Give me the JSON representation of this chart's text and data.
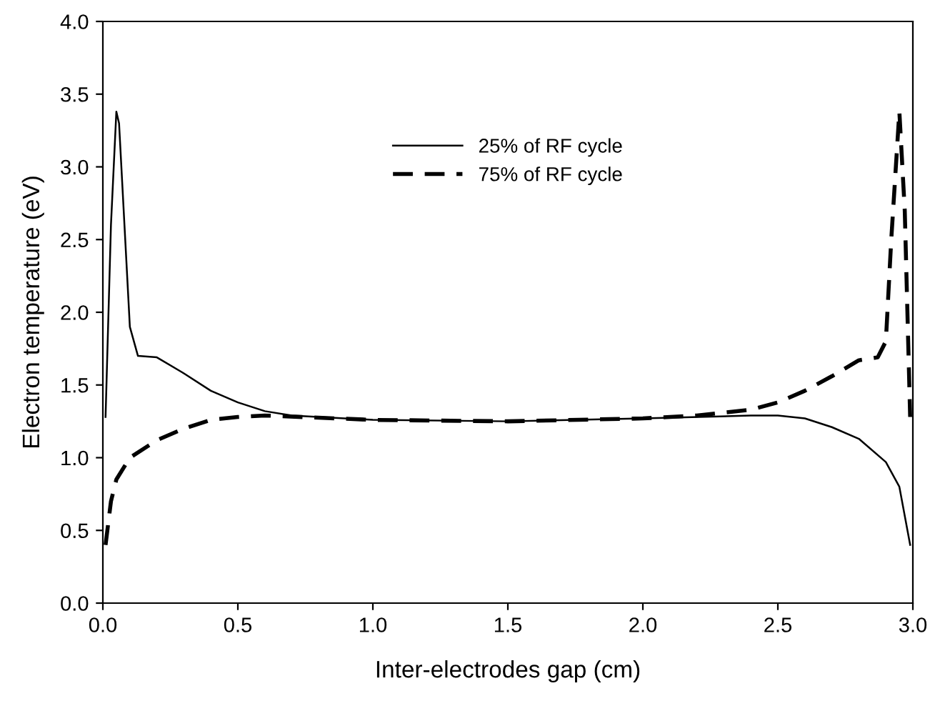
{
  "chart_data": {
    "type": "line",
    "xlabel": "Inter-electrodes gap (cm)",
    "ylabel": "Electron temperature (eV)",
    "xlim": [
      0,
      3
    ],
    "ylim": [
      0,
      4
    ],
    "xticks": [
      {
        "value": 0,
        "label": "0.0"
      },
      0.5,
      {
        "value": 1,
        "label": "1.0"
      },
      1.5,
      {
        "value": 2,
        "label": "2.0"
      },
      2.5,
      {
        "value": 3,
        "label": "3.0"
      }
    ],
    "yticks": [
      {
        "value": 0,
        "label": "0.0"
      },
      0.5,
      {
        "value": 1,
        "label": "1.0"
      },
      1.5,
      {
        "value": 2,
        "label": "2.0"
      },
      2.5,
      {
        "value": 3,
        "label": "3.0"
      },
      3.5,
      {
        "value": 4,
        "label": "4.0"
      }
    ],
    "grid": false,
    "legend": "top",
    "marker": "none",
    "series": [
      {
        "name": "25% of RF cycle",
        "color": "#000000",
        "line_style": "solid",
        "x": [
          0.01,
          0.03,
          0.05,
          0.06,
          0.08,
          0.1,
          0.13,
          0.2,
          0.3,
          0.4,
          0.5,
          0.6,
          0.7,
          1.0,
          1.5,
          2.0,
          2.4,
          2.5,
          2.6,
          2.7,
          2.8,
          2.9,
          2.95,
          2.99
        ],
        "values": [
          1.28,
          2.6,
          3.38,
          3.3,
          2.6,
          1.9,
          1.7,
          1.69,
          1.58,
          1.46,
          1.38,
          1.32,
          1.29,
          1.26,
          1.25,
          1.27,
          1.29,
          1.29,
          1.27,
          1.21,
          1.13,
          0.97,
          0.8,
          0.4
        ]
      },
      {
        "name": "75% of RF cycle",
        "color": "#000000",
        "line_style": "dashed",
        "x": [
          0.01,
          0.03,
          0.05,
          0.1,
          0.2,
          0.3,
          0.4,
          0.5,
          0.6,
          1.0,
          1.5,
          2.0,
          2.2,
          2.4,
          2.5,
          2.6,
          2.7,
          2.8,
          2.87,
          2.9,
          2.92,
          2.95,
          2.97,
          2.99
        ],
        "values": [
          0.4,
          0.7,
          0.85,
          1.0,
          1.12,
          1.2,
          1.26,
          1.28,
          1.29,
          1.26,
          1.25,
          1.27,
          1.29,
          1.33,
          1.38,
          1.46,
          1.56,
          1.67,
          1.69,
          1.8,
          2.5,
          3.38,
          2.7,
          1.28
        ]
      }
    ]
  }
}
